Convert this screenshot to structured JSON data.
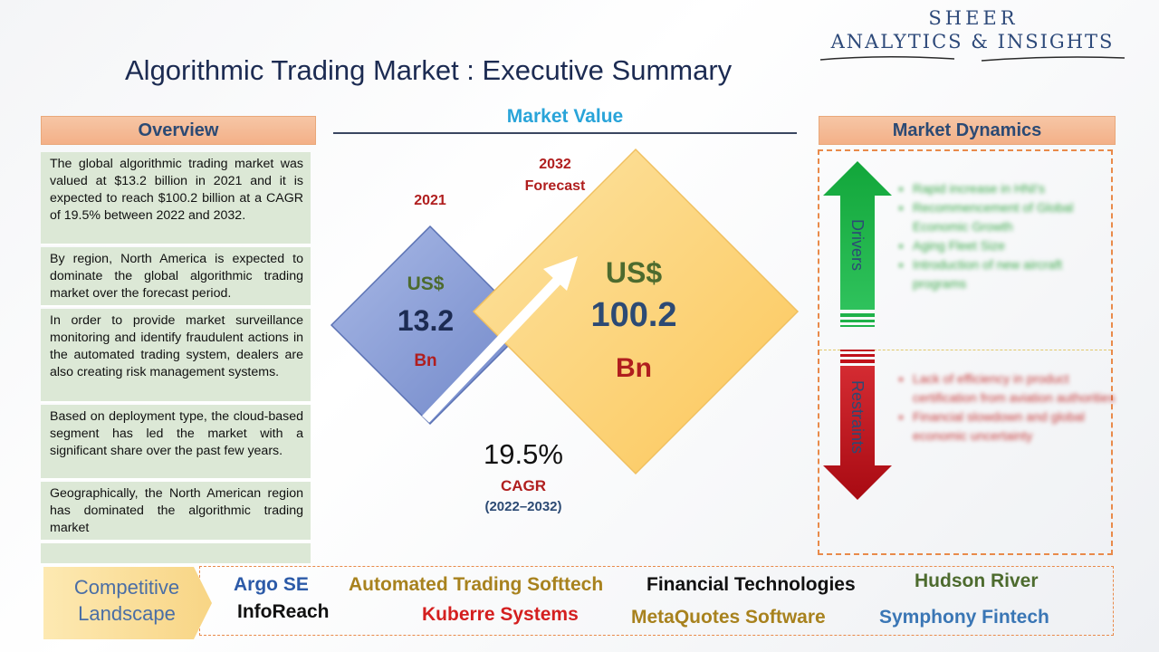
{
  "logo": {
    "line1": "SHEER",
    "line2": "ANALYTICS & INSIGHTS"
  },
  "title": "Algorithmic Trading Market : Executive Summary",
  "overview": {
    "header": "Overview",
    "items": [
      "The global algorithmic trading market was valued at $13.2 billion in 2021 and it is expected to reach $100.2 billion at a CAGR of 19.5% between 2022 and 2032.",
      "By region, North America is expected to dominate the global algorithmic trading market over the forecast period.",
      "In order to provide market surveillance monitoring and identify fraudulent actions in the automated trading system, dealers are also creating risk management systems.",
      "Based on deployment type, the cloud-based segment has led the market with a significant share over the past few years.",
      "Geographically, the North American region has dominated the algorithmic trading market"
    ]
  },
  "market_value": {
    "title": "Market Value",
    "base": {
      "year": "2021",
      "currency": "US$",
      "value": "13.2",
      "unit": "Bn"
    },
    "forecast": {
      "year": "2032",
      "label": "Forecast",
      "currency": "US$",
      "value": "100.2",
      "unit": "Bn"
    },
    "cagr": {
      "value": "19.5%",
      "label": "CAGR",
      "period": "(2022–2032)"
    }
  },
  "market_dynamics": {
    "header": "Market Dynamics",
    "drivers": {
      "label": "Drivers",
      "items": [
        "Rapid increase in HNI's",
        "Recommencement of Global Economic Growth",
        "Aging Fleet Size",
        "Introduction of new aircraft programs"
      ]
    },
    "restraints": {
      "label": "Restraints",
      "items": [
        "Lack of efficiency in product certification from aviation authorities",
        "Financial slowdown and global economic uncertainty"
      ]
    }
  },
  "competitive_landscape": {
    "label_line1": "Competitive",
    "label_line2": "Landscape",
    "companies": [
      "Argo SE",
      "Automated Trading Softtech",
      "Financial Technologies",
      "Hudson River",
      "InfoReach",
      "Kuberre Systems",
      "MetaQuotes Software",
      "Symphony Fintech"
    ]
  },
  "colors": {
    "title": "#1c2b52",
    "accent_blue": "#29a4d9",
    "header_fill": "#f3b088",
    "overview_fill": "#dce8d6",
    "drivers_green": "#1fb24a",
    "restraints_red": "#c0111a",
    "diamond_2021": "#8fa3d8",
    "diamond_2032": "#fdd37c"
  }
}
